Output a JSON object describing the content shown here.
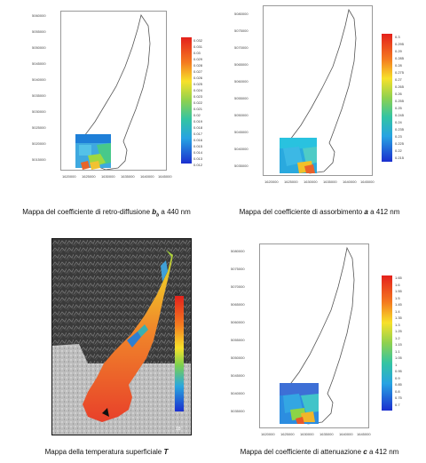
{
  "panels": [
    {
      "id": "retro",
      "caption_pre": "Mappa del coefficiente di retro-diffusione ",
      "caption_var": "b",
      "caption_sub": "b",
      "caption_post": " a 440 nm",
      "y_ticks": [
        "5060000",
        "5055000",
        "5050000",
        "5045000",
        "5040000",
        "5035000",
        "5030000",
        "5025000",
        "5020000",
        "5015000"
      ],
      "x_ticks": [
        "1620000",
        "1625000",
        "1630000",
        "1635000",
        "1640000",
        "1645000"
      ],
      "colorbar": [
        "0.032",
        "0.031",
        "0.03",
        "0.029",
        "0.028",
        "0.027",
        "0.026",
        "0.025",
        "0.024",
        "0.023",
        "0.022",
        "0.021",
        "0.02",
        "0.019",
        "0.018",
        "0.017",
        "0.016",
        "0.015",
        "0.014",
        "0.013",
        "0.012"
      ]
    },
    {
      "id": "assorb",
      "caption_pre": "Mappa del coefficiente di assorbimento ",
      "caption_var": "a",
      "caption_post": " a 412 nm",
      "y_ticks": [
        "5080000",
        "5075000",
        "5070000",
        "5065000",
        "5060000",
        "5055000",
        "5050000",
        "5045000",
        "5040000",
        "5035000"
      ],
      "x_ticks": [
        "1620000",
        "1625000",
        "1630000",
        "1635000",
        "1640000",
        "1645000"
      ],
      "colorbar": [
        "0.3",
        "0.295",
        "0.29",
        "0.285",
        "0.28",
        "0.275",
        "0.27",
        "0.265",
        "0.26",
        "0.255",
        "0.25",
        "0.245",
        "0.24",
        "0.235",
        "0.23",
        "0.225",
        "0.22",
        "0.215"
      ]
    },
    {
      "id": "temp",
      "caption_pre": "Mappa della temperatura superficiale ",
      "caption_var": "T",
      "caption_post": "",
      "colorbar_top": "24",
      "colorbar_bottom": "18"
    },
    {
      "id": "atten",
      "caption_pre": "Mappa del coefficiente di attenuazione ",
      "caption_var": "c",
      "caption_post": " a 412 nm",
      "y_ticks": [
        "5080000",
        "5075000",
        "5070000",
        "5065000",
        "5060000",
        "5055000",
        "5050000",
        "5045000",
        "5040000",
        "5035000"
      ],
      "x_ticks": [
        "1620000",
        "1625000",
        "1630000",
        "1635000",
        "1640000",
        "1645000"
      ],
      "colorbar": [
        "1.65",
        "1.6",
        "1.55",
        "1.5",
        "1.45",
        "1.4",
        "1.35",
        "1.3",
        "1.25",
        "1.2",
        "1.15",
        "1.1",
        "1.05",
        "1",
        "0.95",
        "0.9",
        "0.85",
        "0.8",
        "0.75",
        "0.7"
      ]
    }
  ]
}
